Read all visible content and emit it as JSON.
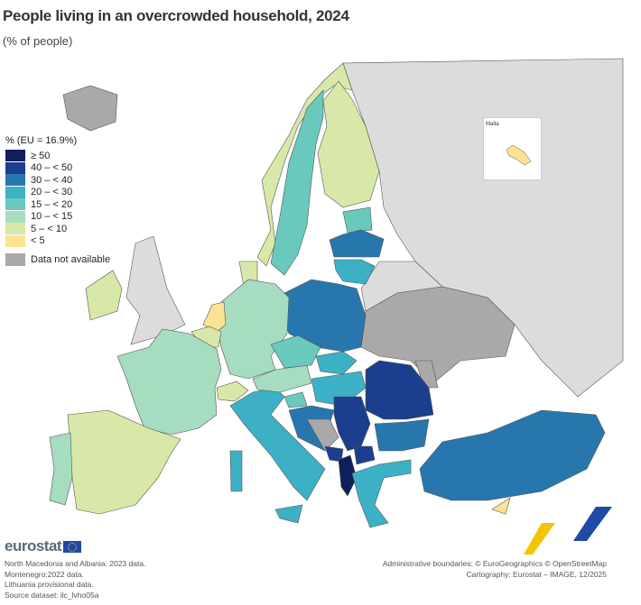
{
  "title": "People living in an overcrowded household, 2024",
  "subtitle": "(% of people)",
  "legend": {
    "title": "% (EU = 16.9%)",
    "classes": [
      {
        "label": "≥ 50",
        "color": "#0f1f5c"
      },
      {
        "label": "40 – < 50",
        "color": "#1b3f8e"
      },
      {
        "label": "30 – < 40",
        "color": "#2777ae"
      },
      {
        "label": "20 – < 30",
        "color": "#3cb1c6"
      },
      {
        "label": "15 – < 20",
        "color": "#69c9bc"
      },
      {
        "label": "10 – < 15",
        "color": "#a6dcbf"
      },
      {
        "label": "5 – < 10",
        "color": "#d8e8a8"
      },
      {
        "label": "< 5",
        "color": "#fbe392"
      }
    ],
    "na": {
      "label": "Data not available",
      "color": "#a9a9a9"
    },
    "non_eu_color": "#dcdcdc"
  },
  "map_fills": {
    "norway": 6,
    "sweden": 4,
    "finland": 6,
    "estonia": 4,
    "latvia": 2,
    "lithuania": 3,
    "denmark": 6,
    "poland": 2,
    "germany": 5,
    "netherlands": 7,
    "belgium": 6,
    "france": 5,
    "spain": 6,
    "portugal": 5,
    "ireland": 6,
    "switzerland": 6,
    "italy": 3,
    "austria": 5,
    "czechia": 4,
    "slovakia": 3,
    "hungary": 3,
    "slovenia": 4,
    "croatia": 2,
    "serbia": 1,
    "montenegro": 1,
    "albania": 0,
    "north-macedonia": 1,
    "romania": 1,
    "bulgaria": 2,
    "greece": 3,
    "turkey": 2,
    "cyprus": 7,
    "malta": 7,
    "iceland": "na",
    "bosnia": "na",
    "ukraine": "na",
    "moldova": "na"
  },
  "inset": {
    "label": "Malta"
  },
  "logo": "eurostat",
  "notes": [
    "North Macedonia and Albania: 2023 data.",
    "Montenegro:2022 data.",
    "Lithuania provisional data.",
    "Source dataset: ilc_lvho05a"
  ],
  "credits": [
    "Administrative boundaries: © EuroGeographics © OpenStreetMap",
    "Cartography: Eurostat – IMAGE, 12/2025"
  ]
}
